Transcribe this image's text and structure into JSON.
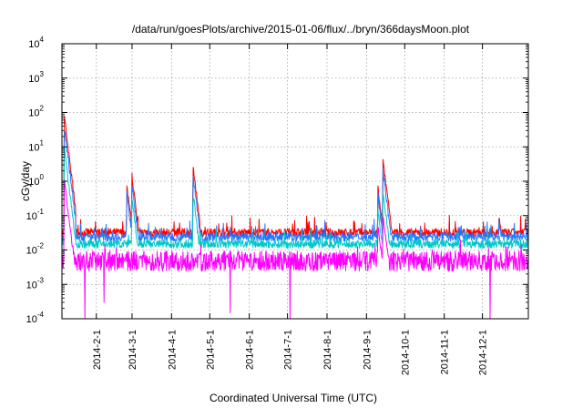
{
  "chart_data": {
    "type": "line",
    "title": "/data/run/goesPlots/archive/2015-01-06/flux/../bryn/366daysMoon.plot",
    "xlabel": "Coordinated Universal Time (UTC)",
    "ylabel": "cGy/day",
    "yscale": "log",
    "ylim": [
      0.0001,
      10000
    ],
    "xlim": [
      "2014-01-05",
      "2015-01-06"
    ],
    "grid": true,
    "legend": "none",
    "x_ticks": [
      "2014-2-1",
      "2014-3-1",
      "2014-4-1",
      "2014-5-1",
      "2014-6-1",
      "2014-7-1",
      "2014-8-1",
      "2014-9-1",
      "2014-10-1",
      "2014-11-1",
      "2014-12-1"
    ],
    "y_ticks": [
      {
        "base": "10",
        "exp": "-4"
      },
      {
        "base": "10",
        "exp": "-3"
      },
      {
        "base": "10",
        "exp": "-2"
      },
      {
        "base": "10",
        "exp": "-1"
      },
      {
        "base": "10",
        "exp": "0"
      },
      {
        "base": "10",
        "exp": "1"
      },
      {
        "base": "10",
        "exp": "2"
      },
      {
        "base": "10",
        "exp": "3"
      },
      {
        "base": "10",
        "exp": "4"
      }
    ],
    "series": [
      {
        "color": "#ff0000",
        "baseline": 0.032,
        "events": [
          {
            "date": "2014-01-07",
            "peak": 70
          },
          {
            "date": "2014-02-25",
            "peak": 0.7
          },
          {
            "date": "2014-03-01",
            "peak": 1.4
          },
          {
            "date": "2014-04-18",
            "peak": 2.3
          },
          {
            "date": "2014-09-10",
            "peak": 0.6
          },
          {
            "date": "2014-09-14",
            "peak": 4.0
          },
          {
            "date": "2014-12-14",
            "peak": 0.1
          }
        ]
      },
      {
        "color": "#1e78ff",
        "baseline": 0.024,
        "events": [
          {
            "date": "2014-01-07",
            "peak": 35
          },
          {
            "date": "2014-02-25",
            "peak": 0.45
          },
          {
            "date": "2014-03-01",
            "peak": 0.8
          },
          {
            "date": "2014-04-18",
            "peak": 1.4
          },
          {
            "date": "2014-09-10",
            "peak": 0.4
          },
          {
            "date": "2014-09-14",
            "peak": 2.0
          },
          {
            "date": "2014-12-14",
            "peak": 0.07
          }
        ]
      },
      {
        "color": "#00c8c8",
        "baseline": 0.015,
        "events": [
          {
            "date": "2014-01-07",
            "peak": 8
          },
          {
            "date": "2014-03-01",
            "peak": 0.3
          },
          {
            "date": "2014-04-18",
            "peak": 0.4
          },
          {
            "date": "2014-09-10",
            "peak": 0.15
          },
          {
            "date": "2014-09-14",
            "peak": 0.5
          }
        ]
      },
      {
        "color": "#ff00ff",
        "baseline": 0.007,
        "low": 0.0024,
        "events": [
          {
            "date": "2014-01-07",
            "peak": 1.0
          },
          {
            "date": "2014-09-10",
            "peak": 0.05
          },
          {
            "date": "2014-09-14",
            "peak": 0.1
          }
        ],
        "dropouts": [
          {
            "date": "2014-01-23",
            "value": 0.0001
          },
          {
            "date": "2014-02-07",
            "value": 0.0003
          },
          {
            "date": "2014-05-17",
            "value": 0.00015
          },
          {
            "date": "2014-07-03",
            "value": 0.0001
          },
          {
            "date": "2014-12-07",
            "value": 0.0001
          }
        ]
      }
    ]
  }
}
